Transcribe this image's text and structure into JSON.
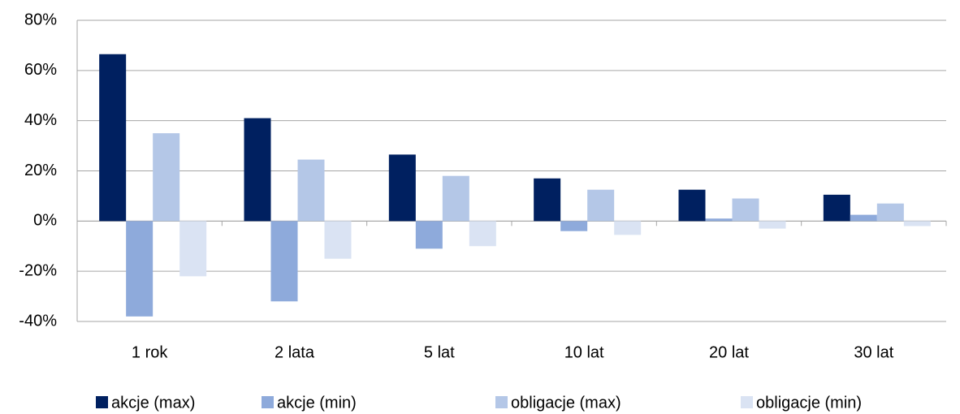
{
  "chart_data": {
    "type": "bar",
    "categories": [
      "1 rok",
      "2 lata",
      "5 lat",
      "10 lat",
      "20 lat",
      "30 lat"
    ],
    "series": [
      {
        "name": "akcje (max)",
        "color": "#002060",
        "values": [
          66.5,
          41,
          26.5,
          17,
          12.5,
          10.5
        ]
      },
      {
        "name": "akcje (min)",
        "color": "#8eaadb",
        "values": [
          -38,
          -32,
          -11,
          -4,
          1,
          2.5
        ]
      },
      {
        "name": "obligacje (max)",
        "color": "#b4c7e7",
        "values": [
          35,
          24.5,
          18,
          12.5,
          9,
          7
        ]
      },
      {
        "name": "obligacje (min)",
        "color": "#dae3f3",
        "values": [
          -22,
          -15,
          -10,
          -5.5,
          -3,
          -2
        ]
      }
    ],
    "ylim": [
      -40,
      80
    ],
    "yticks": [
      {
        "value": -40,
        "label": "-40%"
      },
      {
        "value": -20,
        "label": "-20%"
      },
      {
        "value": 0,
        "label": "0%"
      },
      {
        "value": 20,
        "label": "20%"
      },
      {
        "value": 40,
        "label": "40%"
      },
      {
        "value": 60,
        "label": "60%"
      },
      {
        "value": 80,
        "label": "80%"
      }
    ],
    "grid": true
  }
}
